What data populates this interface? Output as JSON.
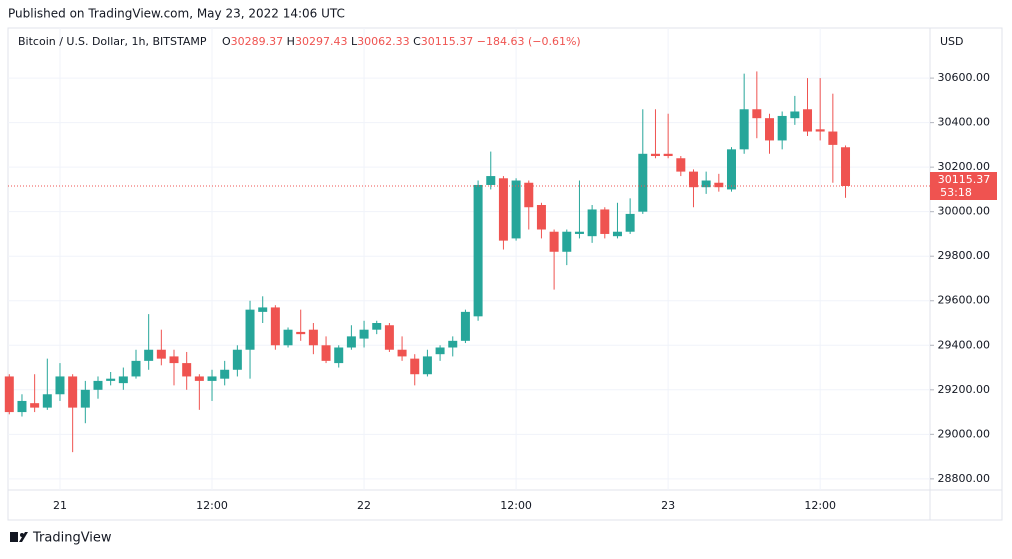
{
  "published": "Published on TradingView.com, May 23, 2022 14:06 UTC",
  "footer": "TradingView",
  "chart_data": {
    "type": "candlestick",
    "symbol": "Bitcoin / U.S. Dollar, 1h, BITSTAMP",
    "change": "−184.63 (−0.61%)",
    "currency": "USD",
    "countdown": "53:18",
    "up_color": "#26a69a",
    "down_color": "#ef5350",
    "categories": [
      null,
      null,
      null,
      null,
      "21",
      null,
      null,
      null,
      null,
      null,
      null,
      null,
      null,
      null,
      null,
      null,
      "12:00",
      null,
      null,
      null,
      null,
      null,
      null,
      null,
      null,
      null,
      null,
      null,
      "22",
      null,
      null,
      null,
      null,
      null,
      null,
      null,
      null,
      null,
      null,
      null,
      "12:00",
      null,
      null,
      null,
      null,
      null,
      null,
      null,
      null,
      null,
      null,
      null,
      "23",
      null,
      null,
      null,
      null,
      null,
      null,
      null,
      null,
      null,
      null,
      null,
      "12:00",
      null,
      null
    ],
    "open": [
      29260,
      29100,
      29140,
      29120,
      29180,
      29260,
      29120,
      29200,
      29240,
      29230,
      29260,
      29330,
      29380,
      29350,
      29320,
      29260,
      29240,
      29250,
      29290,
      29380,
      29550,
      29570,
      29400,
      29460,
      29470,
      29400,
      29320,
      29390,
      29430,
      29470,
      29490,
      29380,
      29340,
      29270,
      29360,
      29390,
      29420,
      29530,
      30120,
      30150,
      29880,
      30130,
      30030,
      29910,
      29820,
      29900,
      29890,
      30010,
      29890,
      29910,
      30000,
      30260,
      30260,
      30240,
      30180,
      30110,
      30130,
      30100,
      30280,
      30460,
      30420,
      30320,
      30420,
      30460,
      30370,
      30360,
      30289.37
    ],
    "high": [
      29270,
      29180,
      29270,
      29340,
      29320,
      29270,
      29240,
      29260,
      29280,
      29300,
      29380,
      29540,
      29470,
      29380,
      29370,
      29270,
      29290,
      29330,
      29400,
      29600,
      29620,
      29580,
      29480,
      29560,
      29500,
      29440,
      29400,
      29490,
      29510,
      29510,
      29500,
      29440,
      29360,
      29380,
      29400,
      29440,
      29560,
      30140,
      30270,
      30160,
      30150,
      30140,
      30040,
      29920,
      29920,
      30140,
      30030,
      30020,
      30040,
      30060,
      30460,
      30460,
      30440,
      30250,
      30190,
      30180,
      30170,
      30290,
      30620,
      30630,
      30440,
      30450,
      30520,
      30600,
      30600,
      30530,
      30297.43
    ],
    "low": [
      29090,
      29080,
      29100,
      29110,
      29150,
      28920,
      29050,
      29160,
      29220,
      29200,
      29250,
      29290,
      29310,
      29220,
      29200,
      29110,
      29150,
      29220,
      29260,
      29250,
      29500,
      29380,
      29390,
      29420,
      29360,
      29320,
      29300,
      29380,
      29390,
      29450,
      29370,
      29330,
      29220,
      29260,
      29330,
      29350,
      29410,
      29510,
      30100,
      29830,
      29870,
      29920,
      29880,
      29650,
      29760,
      29880,
      29860,
      29880,
      29880,
      29900,
      29990,
      30240,
      30240,
      30160,
      30020,
      30080,
      30090,
      30090,
      30260,
      30330,
      30260,
      30280,
      30390,
      30340,
      30320,
      30130,
      30062.33
    ],
    "close": [
      29100,
      29150,
      29120,
      29180,
      29260,
      29120,
      29200,
      29240,
      29250,
      29260,
      29330,
      29380,
      29340,
      29320,
      29260,
      29240,
      29260,
      29290,
      29380,
      29560,
      29570,
      29400,
      29470,
      29450,
      29400,
      29330,
      29390,
      29440,
      29470,
      29500,
      29380,
      29350,
      29270,
      29350,
      29390,
      29420,
      29550,
      30120,
      30160,
      29870,
      30140,
      30020,
      29920,
      29820,
      29910,
      29910,
      30010,
      29900,
      29910,
      29990,
      30260,
      30250,
      30250,
      30180,
      30110,
      30140,
      30110,
      30280,
      30460,
      30420,
      30320,
      30430,
      30450,
      30360,
      30360,
      30300,
      30115.37
    ],
    "ylim": [
      28750,
      30825
    ],
    "yticks": [
      {
        "value": 28800,
        "label": "28800.00"
      },
      {
        "value": 29000,
        "label": "29000.00"
      },
      {
        "value": 29200,
        "label": "29200.00"
      },
      {
        "value": 29400,
        "label": "29400.00"
      },
      {
        "value": 29600,
        "label": "29600.00"
      },
      {
        "value": 29800,
        "label": "29800.00"
      },
      {
        "value": 30000,
        "label": "30000.00"
      },
      {
        "value": 30200,
        "label": "30200.00"
      },
      {
        "value": 30400,
        "label": "30400.00"
      },
      {
        "value": 30600,
        "label": "30600.00"
      }
    ],
    "grid": true
  }
}
